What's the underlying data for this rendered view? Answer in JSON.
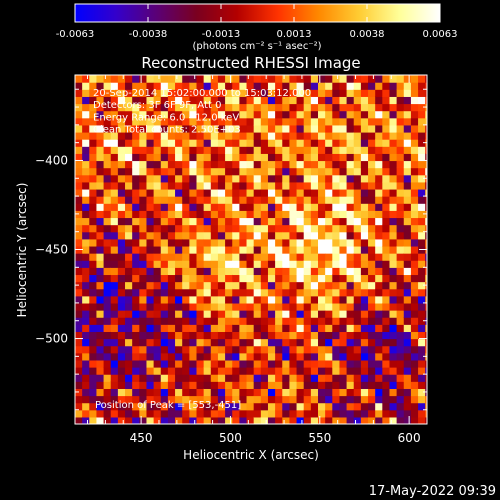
{
  "colorbar": {
    "stops": [
      "#0000ff",
      "#3300cc",
      "#5a0077",
      "#7a0020",
      "#b30000",
      "#ff3300",
      "#ff8800",
      "#ffcc33",
      "#ffff99",
      "#ffffff"
    ],
    "tick_labels": [
      "-0.0063",
      "-0.0038",
      "-0.0013",
      "0.0013",
      "0.0038",
      "0.0063"
    ],
    "units": "(photons cm⁻² s⁻¹ asec⁻²)"
  },
  "chart_data": {
    "type": "heatmap",
    "title": "Reconstructed RHESSI Image",
    "xlabel": "Heliocentric X (arcsec)",
    "ylabel": "Heliocentric Y (arcsec)",
    "xlim": [
      413,
      610
    ],
    "ylim": [
      -548,
      -352
    ],
    "xticks": [
      450,
      500,
      550,
      600
    ],
    "yticks": [
      -400,
      -450,
      -500
    ],
    "value_range": [
      -0.0063,
      0.0063
    ],
    "peak": [
      553,
      -451
    ],
    "annotations": [
      "20-Sep-2014 15:02:00.000 to 15:03:12.000",
      "Detectors: 3F 6F 9F, Att 0",
      "Energy Range: 6.0 - 12.0 keV",
      "Clean     Total counts: 2.50E+03"
    ],
    "peak_label": "Position of Peak = [553,-451]"
  },
  "timestamp": "17-May-2022 09:39"
}
